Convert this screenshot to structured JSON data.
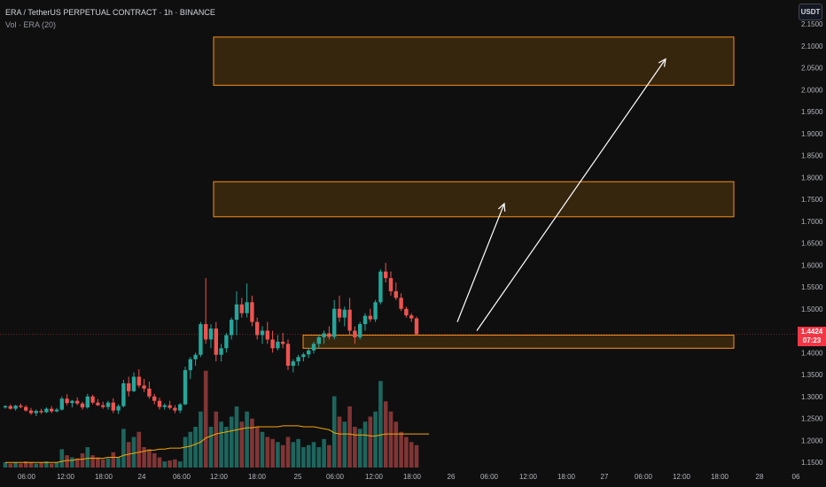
{
  "header": {
    "symbol_line": "ERA / TetherUS PERPETUAL CONTRACT · 1h · BINANCE",
    "volume_line": "Vol · ERA (20)"
  },
  "currency_button": "USDT",
  "last_price": {
    "value": "1.4424",
    "countdown": "07:23"
  },
  "colors": {
    "up": "#26a69a",
    "down": "#ef5350",
    "zone_fill": "#3d2a0e",
    "zone_border": "#f7931a",
    "ma_line": "#f7a600",
    "arrow": "#ffffff"
  },
  "chart_data": {
    "type": "candlestick",
    "y_axis": {
      "range": [
        1.13,
        2.15
      ],
      "ticks": [
        "2.1500",
        "2.1000",
        "2.0500",
        "2.0000",
        "1.9500",
        "1.9000",
        "1.8500",
        "1.8000",
        "1.7500",
        "1.7000",
        "1.6500",
        "1.6000",
        "1.5500",
        "1.5000",
        "1.4500",
        "1.4000",
        "1.3500",
        "1.3000",
        "1.2500",
        "1.2000",
        "1.1500"
      ]
    },
    "x_axis": {
      "ticks": [
        "06:00",
        "12:00",
        "18:00",
        "24",
        "06:00",
        "12:00",
        "18:00",
        "25",
        "06:00",
        "12:00",
        "18:00",
        "26",
        "06:00",
        "12:00",
        "18:00",
        "27",
        "06:00",
        "12:00",
        "18:00",
        "28",
        "06"
      ]
    },
    "candles": [
      [
        1.275,
        1.28,
        1.272,
        1.278
      ],
      [
        1.278,
        1.282,
        1.27,
        1.272
      ],
      [
        1.272,
        1.281,
        1.268,
        1.279
      ],
      [
        1.279,
        1.284,
        1.273,
        1.276
      ],
      [
        1.276,
        1.28,
        1.265,
        1.268
      ],
      [
        1.268,
        1.274,
        1.258,
        1.262
      ],
      [
        1.262,
        1.27,
        1.255,
        1.267
      ],
      [
        1.267,
        1.272,
        1.26,
        1.264
      ],
      [
        1.264,
        1.275,
        1.262,
        1.272
      ],
      [
        1.272,
        1.278,
        1.262,
        1.266
      ],
      [
        1.266,
        1.274,
        1.264,
        1.27
      ],
      [
        1.27,
        1.3,
        1.268,
        1.295
      ],
      [
        1.295,
        1.305,
        1.28,
        1.285
      ],
      [
        1.285,
        1.292,
        1.275,
        1.29
      ],
      [
        1.29,
        1.298,
        1.28,
        1.284
      ],
      [
        1.284,
        1.288,
        1.27,
        1.275
      ],
      [
        1.275,
        1.306,
        1.272,
        1.3
      ],
      [
        1.3,
        1.304,
        1.282,
        1.286
      ],
      [
        1.286,
        1.294,
        1.278,
        1.28
      ],
      [
        1.28,
        1.288,
        1.272,
        1.276
      ],
      [
        1.276,
        1.29,
        1.27,
        1.286
      ],
      [
        1.286,
        1.296,
        1.262,
        1.268
      ],
      [
        1.268,
        1.282,
        1.26,
        1.278
      ],
      [
        1.278,
        1.338,
        1.275,
        1.33
      ],
      [
        1.33,
        1.345,
        1.3,
        1.312
      ],
      [
        1.312,
        1.355,
        1.31,
        1.345
      ],
      [
        1.345,
        1.362,
        1.32,
        1.325
      ],
      [
        1.325,
        1.34,
        1.31,
        1.318
      ],
      [
        1.318,
        1.334,
        1.295,
        1.3
      ],
      [
        1.3,
        1.306,
        1.282,
        1.29
      ],
      [
        1.29,
        1.297,
        1.27,
        1.276
      ],
      [
        1.276,
        1.284,
        1.27,
        1.28
      ],
      [
        1.28,
        1.29,
        1.27,
        1.274
      ],
      [
        1.274,
        1.28,
        1.262,
        1.268
      ],
      [
        1.268,
        1.285,
        1.262,
        1.282
      ],
      [
        1.282,
        1.368,
        1.28,
        1.36
      ],
      [
        1.36,
        1.39,
        1.34,
        1.385
      ],
      [
        1.385,
        1.4,
        1.37,
        1.395
      ],
      [
        1.395,
        1.47,
        1.39,
        1.465
      ],
      [
        1.465,
        1.57,
        1.42,
        1.43
      ],
      [
        1.43,
        1.465,
        1.41,
        1.455
      ],
      [
        1.455,
        1.47,
        1.38,
        1.395
      ],
      [
        1.395,
        1.42,
        1.38,
        1.41
      ],
      [
        1.41,
        1.445,
        1.4,
        1.44
      ],
      [
        1.44,
        1.48,
        1.43,
        1.475
      ],
      [
        1.475,
        1.54,
        1.44,
        1.51
      ],
      [
        1.51,
        1.525,
        1.48,
        1.49
      ],
      [
        1.49,
        1.558,
        1.48,
        1.515
      ],
      [
        1.515,
        1.53,
        1.46,
        1.47
      ],
      [
        1.47,
        1.48,
        1.43,
        1.44
      ],
      [
        1.44,
        1.46,
        1.42,
        1.45
      ],
      [
        1.45,
        1.47,
        1.42,
        1.43
      ],
      [
        1.43,
        1.45,
        1.4,
        1.41
      ],
      [
        1.41,
        1.44,
        1.405,
        1.425
      ],
      [
        1.425,
        1.445,
        1.41,
        1.42
      ],
      [
        1.42,
        1.43,
        1.36,
        1.37
      ],
      [
        1.37,
        1.385,
        1.355,
        1.38
      ],
      [
        1.38,
        1.395,
        1.37,
        1.39
      ],
      [
        1.39,
        1.4,
        1.38,
        1.396
      ],
      [
        1.396,
        1.41,
        1.388,
        1.405
      ],
      [
        1.405,
        1.425,
        1.398,
        1.42
      ],
      [
        1.42,
        1.44,
        1.41,
        1.435
      ],
      [
        1.435,
        1.45,
        1.42,
        1.444
      ],
      [
        1.444,
        1.46,
        1.43,
        1.436
      ],
      [
        1.436,
        1.52,
        1.43,
        1.5
      ],
      [
        1.5,
        1.53,
        1.47,
        1.48
      ],
      [
        1.48,
        1.505,
        1.46,
        1.498
      ],
      [
        1.498,
        1.525,
        1.44,
        1.45
      ],
      [
        1.45,
        1.46,
        1.42,
        1.435
      ],
      [
        1.435,
        1.47,
        1.43,
        1.465
      ],
      [
        1.465,
        1.49,
        1.45,
        1.484
      ],
      [
        1.484,
        1.5,
        1.47,
        1.476
      ],
      [
        1.476,
        1.52,
        1.47,
        1.515
      ],
      [
        1.515,
        1.59,
        1.51,
        1.585
      ],
      [
        1.585,
        1.605,
        1.56,
        1.57
      ],
      [
        1.57,
        1.585,
        1.53,
        1.54
      ],
      [
        1.54,
        1.56,
        1.52,
        1.525
      ],
      [
        1.525,
        1.535,
        1.495,
        1.5
      ],
      [
        1.5,
        1.505,
        1.48,
        1.485
      ],
      [
        1.485,
        1.49,
        1.47,
        1.478
      ],
      [
        1.478,
        1.482,
        1.44,
        1.442
      ]
    ],
    "volumes": [
      0.05,
      0.04,
      0.05,
      0.04,
      0.06,
      0.05,
      0.04,
      0.05,
      0.06,
      0.04,
      0.05,
      0.18,
      0.12,
      0.1,
      0.09,
      0.14,
      0.2,
      0.12,
      0.1,
      0.08,
      0.09,
      0.15,
      0.1,
      0.38,
      0.25,
      0.3,
      0.35,
      0.2,
      0.18,
      0.14,
      0.1,
      0.06,
      0.07,
      0.08,
      0.06,
      0.3,
      0.35,
      0.4,
      0.55,
      0.95,
      0.4,
      0.55,
      0.45,
      0.4,
      0.5,
      0.6,
      0.45,
      0.55,
      0.48,
      0.4,
      0.35,
      0.3,
      0.28,
      0.25,
      0.22,
      0.3,
      0.25,
      0.28,
      0.2,
      0.22,
      0.25,
      0.2,
      0.28,
      0.22,
      0.7,
      0.5,
      0.45,
      0.6,
      0.4,
      0.38,
      0.45,
      0.5,
      0.55,
      0.85,
      0.65,
      0.55,
      0.45,
      0.35,
      0.3,
      0.25,
      0.22
    ],
    "volume_ma": [
      0.05,
      0.05,
      0.05,
      0.05,
      0.05,
      0.05,
      0.05,
      0.05,
      0.05,
      0.05,
      0.05,
      0.06,
      0.07,
      0.07,
      0.08,
      0.08,
      0.09,
      0.09,
      0.09,
      0.09,
      0.1,
      0.1,
      0.1,
      0.12,
      0.13,
      0.14,
      0.15,
      0.16,
      0.17,
      0.17,
      0.18,
      0.18,
      0.19,
      0.19,
      0.19,
      0.2,
      0.21,
      0.23,
      0.25,
      0.29,
      0.31,
      0.33,
      0.34,
      0.35,
      0.36,
      0.37,
      0.38,
      0.39,
      0.39,
      0.4,
      0.4,
      0.4,
      0.4,
      0.4,
      0.41,
      0.41,
      0.41,
      0.41,
      0.4,
      0.4,
      0.4,
      0.39,
      0.38,
      0.37,
      0.34,
      0.33,
      0.33,
      0.33,
      0.32,
      0.32,
      0.32,
      0.31,
      0.31,
      0.32,
      0.33,
      0.33,
      0.33,
      0.33,
      0.33,
      0.33,
      0.33
    ],
    "zones": [
      {
        "from": 2.01,
        "to": 2.12
      },
      {
        "from": 1.71,
        "to": 1.79
      },
      {
        "from": 1.41,
        "to": 1.44
      }
    ],
    "arrows": [
      {
        "from_price": 1.47,
        "to_price": 1.74
      },
      {
        "from_price": 1.45,
        "to_price": 2.07
      }
    ]
  }
}
